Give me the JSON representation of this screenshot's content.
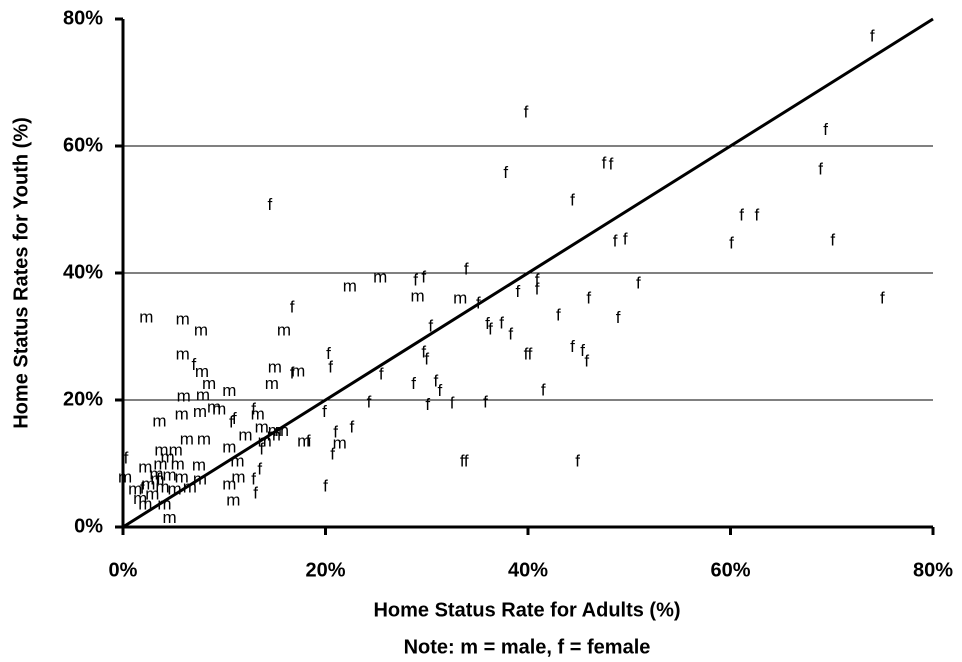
{
  "chart_data": {
    "type": "scatter",
    "x_label": "Home Status Rate for Adults (%)",
    "y_label": "Home Status Rates for Youth (%)",
    "note": "Note: m = male, f = female",
    "xlim": [
      0,
      80
    ],
    "ylim": [
      0,
      80
    ],
    "xticks": [
      {
        "value": 0,
        "label": "0%"
      },
      {
        "value": 20,
        "label": "20%"
      },
      {
        "value": 40,
        "label": "40%"
      },
      {
        "value": 60,
        "label": "60%"
      },
      {
        "value": 80,
        "label": "80%"
      }
    ],
    "yticks": [
      {
        "value": 0,
        "label": "0%"
      },
      {
        "value": 20,
        "label": "20%"
      },
      {
        "value": 40,
        "label": "40%"
      },
      {
        "value": 60,
        "label": "60%"
      },
      {
        "value": 80,
        "label": "80%"
      }
    ],
    "grid": true,
    "series": [
      {
        "name": "m",
        "color": "#000000",
        "x": [
          2.3,
          5.9,
          7.7,
          15.9,
          22.4,
          25.4,
          29.1,
          33.3,
          5.9,
          7.8,
          8.5,
          6.0,
          10.5,
          15.0,
          14.7,
          17.3,
          7.9,
          9.0,
          9.5,
          5.8,
          7.6,
          3.6,
          13.3,
          12.1,
          14.9,
          13.7,
          14.0,
          15.0,
          15.7,
          17.9,
          6.3,
          8.0,
          10.5,
          3.8,
          5.2,
          21.4,
          11.3,
          11.4,
          10.5,
          10.9,
          7.5,
          2.2,
          0.2,
          4.4,
          5.4,
          1.2,
          1.7,
          2.5,
          2.9,
          3.4,
          3.9,
          4.6,
          5.1,
          5.8,
          6.6,
          4.1,
          4.6,
          2.2,
          3.3,
          3.7,
          7.6
        ],
        "values": [
          32.9,
          32.6,
          30.9,
          30.9,
          37.8,
          39.2,
          36.2,
          35.9,
          27.1,
          24.3,
          22.4,
          20.5,
          21.3,
          25.0,
          22.4,
          24.4,
          20.6,
          18.7,
          18.4,
          17.6,
          18.0,
          16.5,
          17.6,
          14.3,
          14.3,
          15.6,
          13.4,
          15.0,
          15.0,
          13.4,
          13.7,
          13.7,
          12.4,
          12.0,
          12.0,
          13.1,
          10.2,
          7.7,
          6.6,
          4.1,
          9.6,
          9.3,
          7.7,
          10.9,
          9.8,
          5.8,
          4.3,
          6.6,
          5.0,
          7.4,
          6.1,
          8.0,
          5.8,
          7.7,
          6.1,
          3.5,
          1.3,
          3.5,
          8.2,
          9.8,
          7.4
        ]
      },
      {
        "name": "f",
        "color": "#000000",
        "x": [
          74.0,
          39.8,
          69.4,
          47.5,
          48.2,
          37.8,
          68.9,
          14.5,
          44.4,
          61.1,
          62.6,
          49.6,
          48.6,
          60.1,
          70.1,
          33.9,
          28.9,
          29.7,
          40.9,
          40.9,
          50.9,
          39.0,
          46.0,
          75.0,
          35.1,
          43.0,
          48.9,
          16.7,
          30.4,
          36.0,
          36.3,
          37.4,
          38.3,
          29.7,
          30.0,
          20.3,
          20.5,
          39.8,
          40.2,
          44.4,
          45.4,
          45.8,
          25.5,
          16.7,
          28.7,
          30.9,
          31.3,
          41.5,
          24.3,
          30.1,
          32.5,
          35.8,
          19.9,
          10.7,
          11.0,
          21.0,
          20.7,
          22.6,
          12.9,
          18.3,
          33.5,
          33.9,
          44.9,
          20.0,
          13.7,
          13.5,
          12.9,
          13.1,
          0.3,
          1.9,
          3.5,
          7.0
        ],
        "values": [
          77.2,
          65.2,
          62.4,
          57.2,
          57.0,
          55.7,
          56.2,
          50.6,
          51.3,
          49.0,
          49.0,
          45.2,
          44.9,
          44.6,
          45.0,
          40.5,
          38.7,
          39.2,
          38.7,
          37.3,
          38.3,
          36.9,
          35.9,
          35.9,
          35.1,
          33.2,
          32.8,
          34.5,
          31.5,
          31.9,
          31.0,
          32.0,
          30.2,
          27.4,
          26.3,
          27.2,
          25.0,
          27.1,
          27.1,
          28.3,
          27.6,
          26.0,
          23.9,
          24.1,
          22.4,
          22.8,
          21.3,
          21.4,
          19.5,
          19.1,
          19.4,
          19.5,
          18.0,
          16.4,
          16.9,
          14.8,
          11.3,
          15.6,
          18.4,
          13.4,
          10.2,
          10.2,
          10.2,
          6.3,
          12.1,
          9.0,
          7.4,
          5.2,
          10.7,
          6.0,
          7.4,
          25.4
        ]
      }
    ]
  }
}
